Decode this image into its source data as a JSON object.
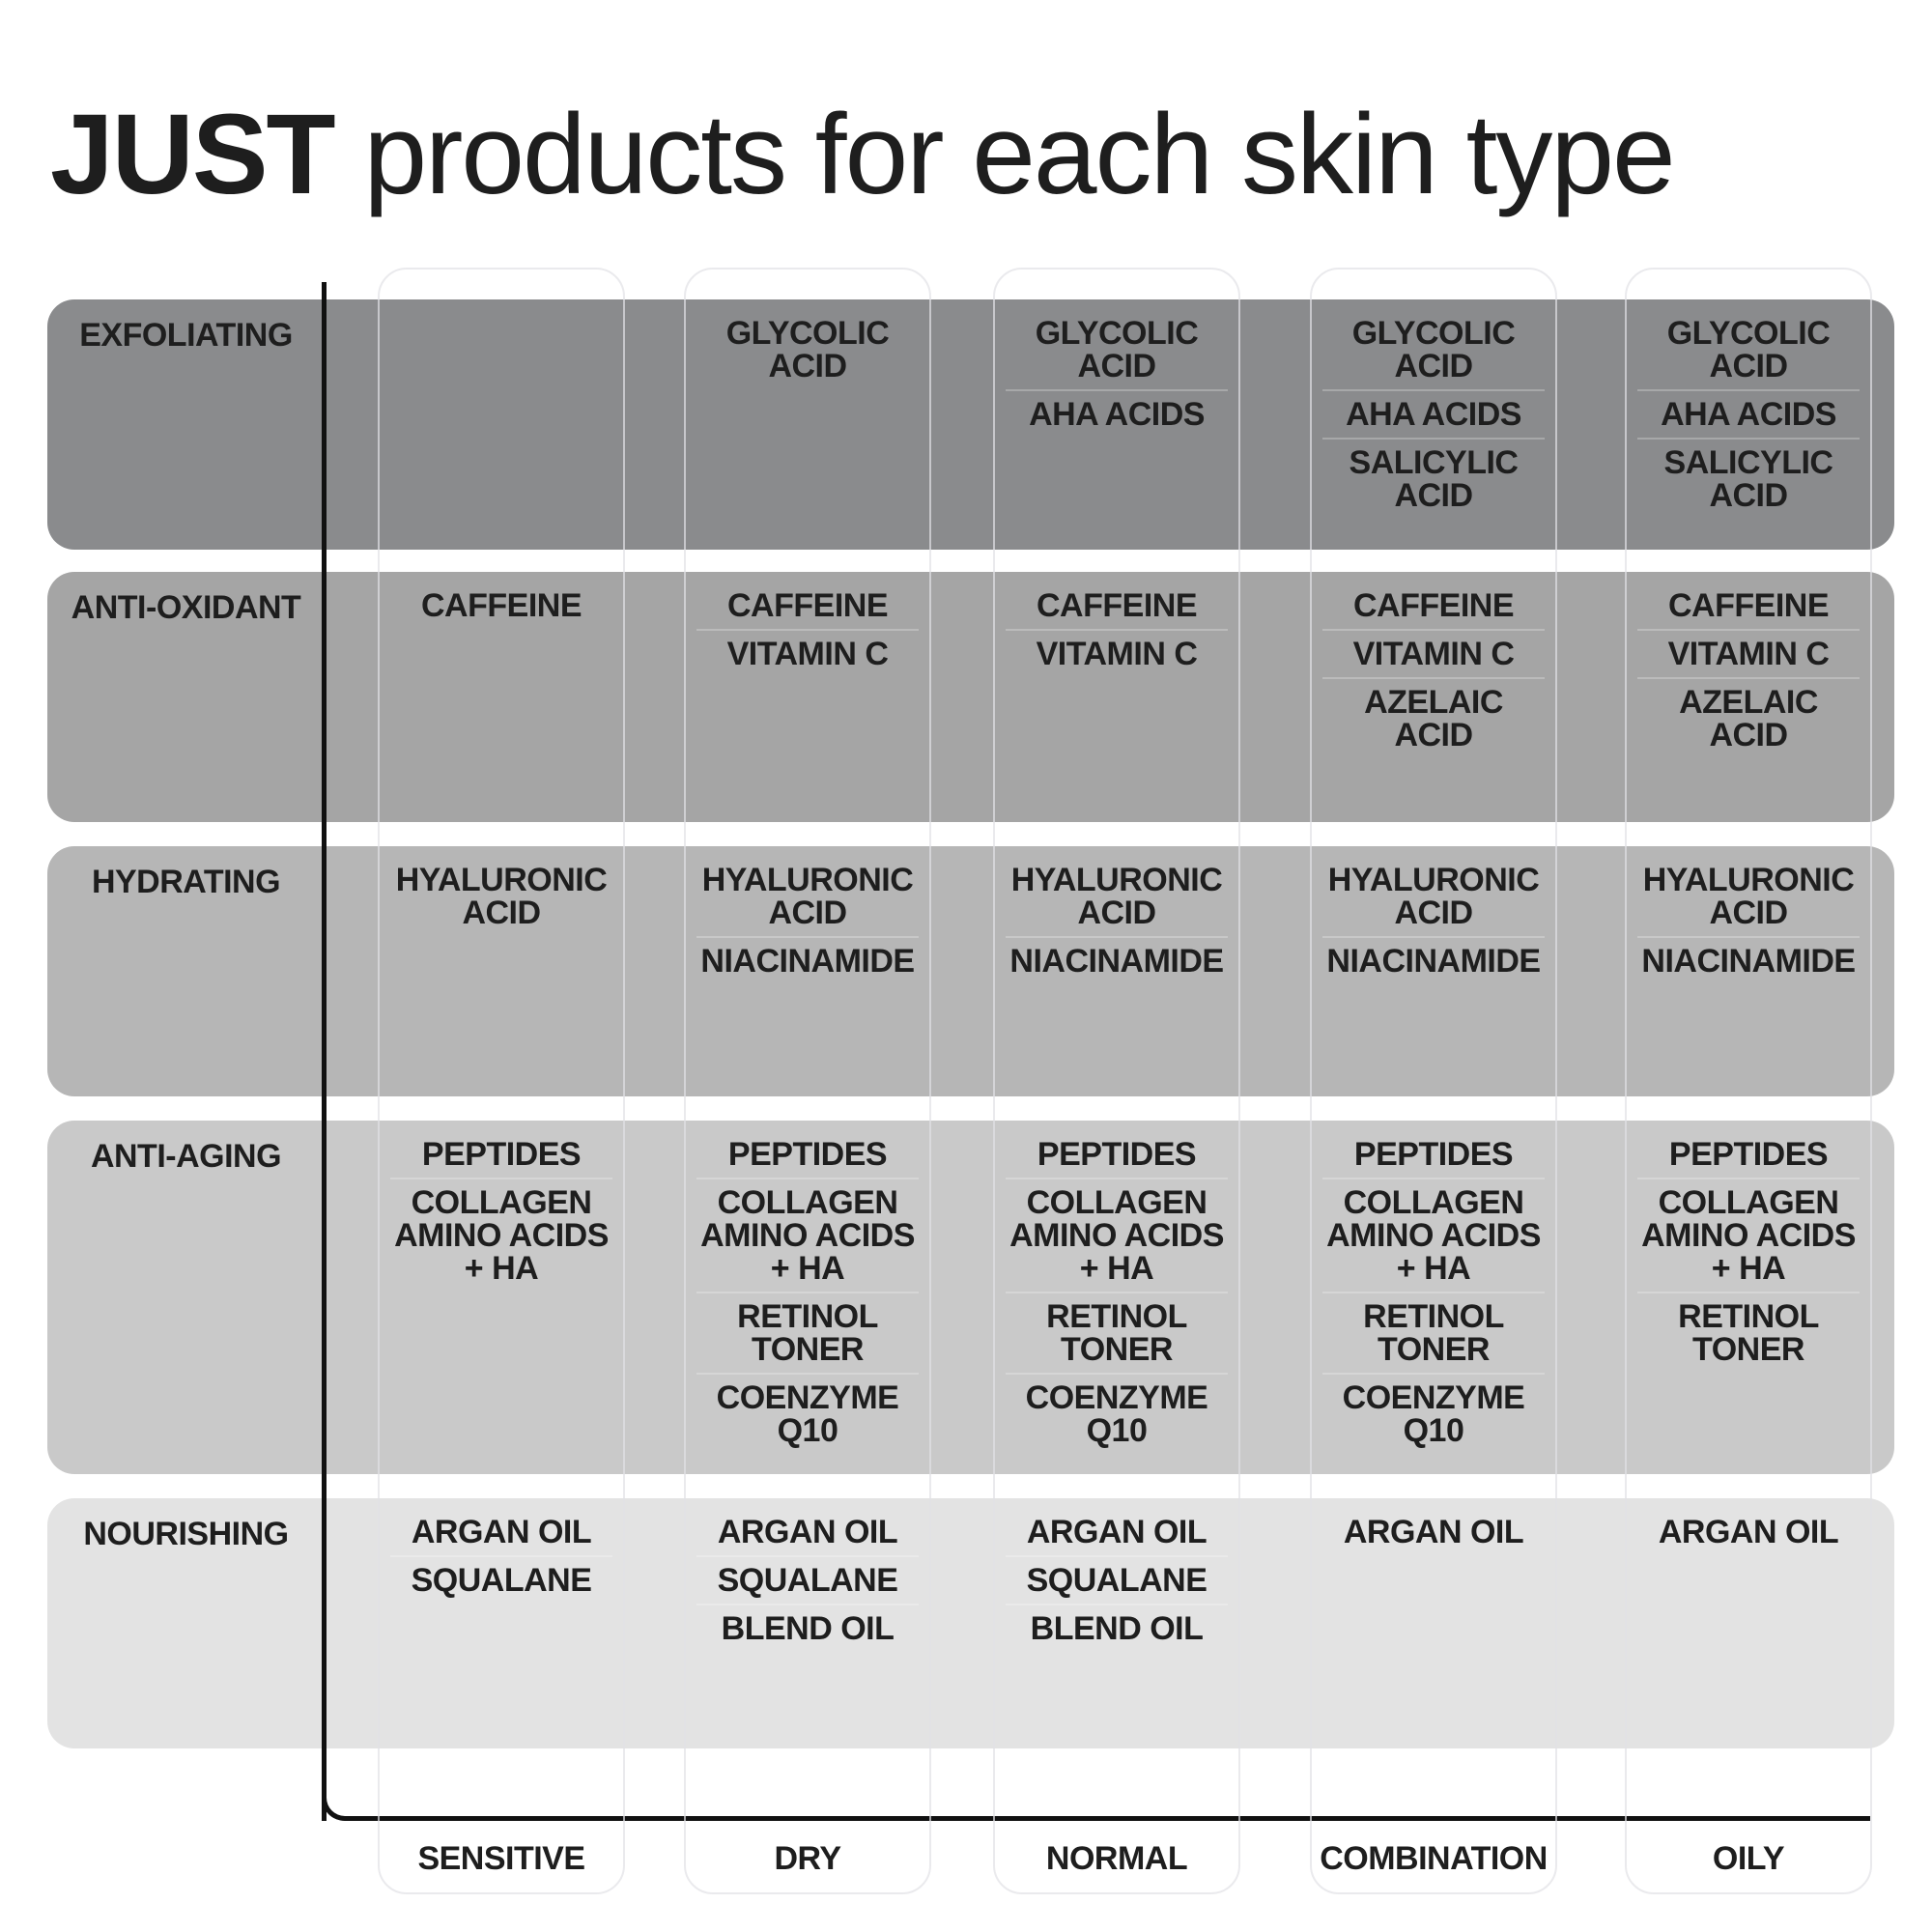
{
  "title": {
    "brand": "JUST",
    "rest": "products for each skin type"
  },
  "colors": {
    "exfoliating": "#8a8b8d",
    "anti_oxidant": "#a5a5a5",
    "hydrating": "#b6b6b6",
    "anti_aging": "#c9c9c9",
    "nourishing": "#e3e3e3"
  },
  "chart_data": {
    "type": "table",
    "columns": [
      "SENSITIVE",
      "DRY",
      "NORMAL",
      "COMBINATION",
      "OILY"
    ],
    "rows": [
      {
        "label": "EXFOLIATING",
        "cells": [
          [],
          [
            "GLYCOLIC ACID"
          ],
          [
            "GLYCOLIC ACID",
            "AHA ACIDS"
          ],
          [
            "GLYCOLIC ACID",
            "AHA ACIDS",
            "SALICYLIC ACID"
          ],
          [
            "GLYCOLIC ACID",
            "AHA ACIDS",
            "SALICYLIC ACID"
          ]
        ]
      },
      {
        "label": "ANTI-OXIDANT",
        "cells": [
          [
            "CAFFEINE"
          ],
          [
            "CAFFEINE",
            "VITAMIN C"
          ],
          [
            "CAFFEINE",
            "VITAMIN C"
          ],
          [
            "CAFFEINE",
            "VITAMIN C",
            "AZELAIC ACID"
          ],
          [
            "CAFFEINE",
            "VITAMIN C",
            "AZELAIC ACID"
          ]
        ]
      },
      {
        "label": "HYDRATING",
        "cells": [
          [
            "HYALURONIC ACID"
          ],
          [
            "HYALURONIC ACID",
            "NIACINAMIDE"
          ],
          [
            "HYALURONIC ACID",
            "NIACINAMIDE"
          ],
          [
            "HYALURONIC ACID",
            "NIACINAMIDE"
          ],
          [
            "HYALURONIC ACID",
            "NIACINAMIDE"
          ]
        ]
      },
      {
        "label": "ANTI-AGING",
        "cells": [
          [
            "PEPTIDES",
            "COLLAGEN AMINO ACIDS + HA"
          ],
          [
            "PEPTIDES",
            "COLLAGEN AMINO ACIDS + HA",
            "RETINOL TONER",
            "COENZYME Q10"
          ],
          [
            "PEPTIDES",
            "COLLAGEN AMINO ACIDS + HA",
            "RETINOL TONER",
            "COENZYME Q10"
          ],
          [
            "PEPTIDES",
            "COLLAGEN AMINO ACIDS + HA",
            "RETINOL TONER",
            "COENZYME Q10"
          ],
          [
            "PEPTIDES",
            "COLLAGEN AMINO ACIDS + HA",
            "RETINOL TONER"
          ]
        ]
      },
      {
        "label": "NOURISHING",
        "cells": [
          [
            "ARGAN OIL",
            "SQUALANE"
          ],
          [
            "ARGAN OIL",
            "SQUALANE",
            "BLEND OIL"
          ],
          [
            "ARGAN OIL",
            "SQUALANE",
            "BLEND OIL"
          ],
          [
            "ARGAN OIL"
          ],
          [
            "ARGAN OIL"
          ]
        ]
      }
    ]
  }
}
